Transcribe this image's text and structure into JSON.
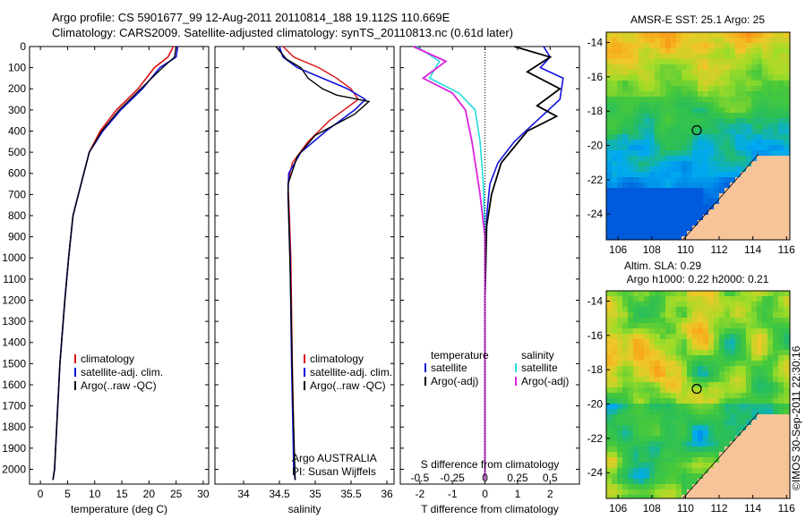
{
  "header": {
    "line1": "Argo profile: CS 5901677_99 12-Aug-2011 20110814_188 19.112S 110.669E",
    "line2": "Climatology: CARS2009. Satellite-adjusted climatology: synTS_20110813.nc (0.61d later)"
  },
  "colors": {
    "climatology": "#dd1111",
    "satellite": "#1111dd",
    "argo": "#000000",
    "sat_cyan": "#22dddd",
    "argo_magenta": "#dd22dd"
  },
  "chart_data": [
    {
      "type": "line",
      "xlabel": "temperature (deg C)",
      "ylabel": "",
      "xlim": [
        -2,
        31
      ],
      "ylim": [
        2070,
        0
      ],
      "xticks": [
        "0",
        "5",
        "10",
        "15",
        "20",
        "25",
        "30"
      ],
      "yticks": [
        "0",
        "100",
        "200",
        "300",
        "400",
        "500",
        "600",
        "700",
        "800",
        "900",
        "1000",
        "1100",
        "1200",
        "1300",
        "1400",
        "1500",
        "1600",
        "1700",
        "1800",
        "1900",
        "2000"
      ],
      "legend": [
        "climatology",
        "satellite-adj. clim.",
        "Argo(..raw -QC)"
      ],
      "series": [
        {
          "name": "climatology",
          "x": [
            24.5,
            23.5,
            21,
            18,
            14,
            11,
            9,
            8,
            7,
            6,
            5.2,
            4.5,
            3.6,
            3,
            2.6,
            2.3
          ],
          "y": [
            0,
            50,
            100,
            200,
            300,
            400,
            500,
            600,
            700,
            800,
            1000,
            1200,
            1500,
            1800,
            2000,
            2050
          ]
        },
        {
          "name": "satellite-adj. clim.",
          "x": [
            25.3,
            25,
            22,
            18.8,
            14.8,
            11.5,
            9,
            8,
            7,
            6,
            5.2,
            4.5,
            3.6,
            3,
            2.6,
            2.3
          ],
          "y": [
            0,
            50,
            100,
            200,
            300,
            400,
            500,
            600,
            700,
            800,
            1000,
            1200,
            1500,
            1800,
            2000,
            2050
          ]
        },
        {
          "name": "Argo(..raw -QC)",
          "x": [
            25,
            24.7,
            22.5,
            18.5,
            14.5,
            11.3,
            9,
            8,
            7,
            6,
            5.2,
            4.5,
            3.6,
            3,
            2.6,
            2.3
          ],
          "y": [
            0,
            50,
            100,
            200,
            300,
            400,
            500,
            600,
            700,
            800,
            1000,
            1200,
            1500,
            1800,
            2000,
            2050
          ]
        }
      ]
    },
    {
      "type": "line",
      "xlabel": "salinity",
      "ylabel": "",
      "xlim": [
        33.6,
        36.1
      ],
      "ylim": [
        2070,
        0
      ],
      "xticks": [
        "34",
        "34.5",
        "35",
        "35.5",
        "36"
      ],
      "legend": [
        "climatology",
        "satellite-adj. clim.",
        "Argo(..raw -QC)"
      ],
      "annotation": [
        "Argo AUSTRALIA",
        "PI: Susan Wijffels"
      ],
      "series": [
        {
          "name": "climatology",
          "x": [
            34.55,
            34.7,
            35.05,
            35.3,
            35.5,
            35.6,
            35.2,
            34.9,
            34.68,
            34.62,
            34.64,
            34.66,
            34.68,
            34.71,
            34.72
          ],
          "y": [
            0,
            50,
            100,
            150,
            200,
            250,
            350,
            450,
            550,
            650,
            800,
            1000,
            1500,
            2000,
            2050
          ]
        },
        {
          "name": "satellite-adj. clim.",
          "x": [
            34.5,
            34.55,
            34.75,
            35.1,
            35.45,
            35.7,
            35.55,
            35.15,
            34.8,
            34.63,
            34.62,
            34.65,
            34.67,
            34.7,
            34.72
          ],
          "y": [
            0,
            50,
            100,
            150,
            200,
            250,
            300,
            400,
            500,
            600,
            700,
            1000,
            1500,
            2000,
            2050
          ]
        },
        {
          "name": "Argo(..raw -QC)",
          "x": [
            34.45,
            34.6,
            34.8,
            34.9,
            35.1,
            35.3,
            35.75,
            35.55,
            35.0,
            34.75,
            34.62,
            34.63,
            34.66,
            34.69,
            34.72
          ],
          "y": [
            0,
            60,
            100,
            150,
            200,
            230,
            260,
            320,
            420,
            520,
            650,
            800,
            1200,
            1700,
            2050
          ]
        }
      ]
    },
    {
      "type": "line",
      "xlabel": "T difference from climatology",
      "title": "S difference from climatology",
      "xlim": [
        -2.6,
        2.9
      ],
      "ylim": [
        2070,
        0
      ],
      "xticks": [
        "-2",
        "-1",
        "0",
        "1",
        "2"
      ],
      "xticks_top": [
        "-0.5",
        "-0.25",
        "0",
        "0.25",
        "0.5"
      ],
      "legend": [
        "temperature",
        "satellite",
        "Argo(-adj)",
        "salinity",
        "satellite",
        "Argo(-adj)"
      ],
      "series": [
        {
          "name": "satellite",
          "x": [
            1.8,
            2.0,
            1.7,
            2.4,
            2.3,
            1.6,
            0.9,
            0.4,
            0.15,
            0.05,
            0,
            0
          ],
          "y": [
            0,
            50,
            100,
            150,
            250,
            350,
            450,
            550,
            650,
            800,
            1200,
            2050
          ]
        },
        {
          "name": "Argo(-adj)",
          "x": [
            0.9,
            2.0,
            1.3,
            2.3,
            1.6,
            2.2,
            1.3,
            0.5,
            0.2,
            0.05,
            0,
            0
          ],
          "y": [
            0,
            50,
            120,
            200,
            280,
            330,
            400,
            550,
            700,
            850,
            1200,
            2050
          ]
        },
        {
          "name": "satellite",
          "x": [
            -2.1,
            -1.4,
            -1.7,
            -0.8,
            -0.3,
            -0.15,
            -0.05,
            0,
            0
          ],
          "y": [
            0,
            70,
            150,
            220,
            300,
            450,
            650,
            900,
            2050
          ]
        },
        {
          "name": "Argo(-adj)",
          "x": [
            -2.2,
            -1.2,
            -1.9,
            -1.0,
            -0.6,
            -0.4,
            -0.15,
            0,
            0
          ],
          "y": [
            0,
            70,
            150,
            220,
            300,
            450,
            700,
            900,
            2050
          ]
        }
      ]
    },
    {
      "type": "heatmap",
      "title": "AMSR-E SST: 25.1  Argo: 25",
      "xlim": [
        105.3,
        116.2
      ],
      "ylim": [
        -25.5,
        -13.4
      ],
      "xticks": [
        "106",
        "108",
        "110",
        "112",
        "114",
        "116"
      ],
      "yticks": [
        "-14",
        "-16",
        "-18",
        "-20",
        "-22",
        "-24"
      ],
      "marker": {
        "x": 110.67,
        "y": -19.11
      }
    },
    {
      "type": "heatmap",
      "title": "Altim. SLA: 0.29",
      "subtitle": "Argo h1000: 0.22 h2000: 0.21",
      "xlim": [
        105.3,
        116.2
      ],
      "ylim": [
        -25.5,
        -13.4
      ],
      "xticks": [
        "106",
        "108",
        "110",
        "112",
        "114",
        "116"
      ],
      "yticks": [
        "-14",
        "-16",
        "-18",
        "-20",
        "-22",
        "-24"
      ],
      "marker": {
        "x": 110.67,
        "y": -19.11
      }
    }
  ],
  "footer": {
    "credit": "©IMOS 30-Sep-2011 22:30:16"
  }
}
